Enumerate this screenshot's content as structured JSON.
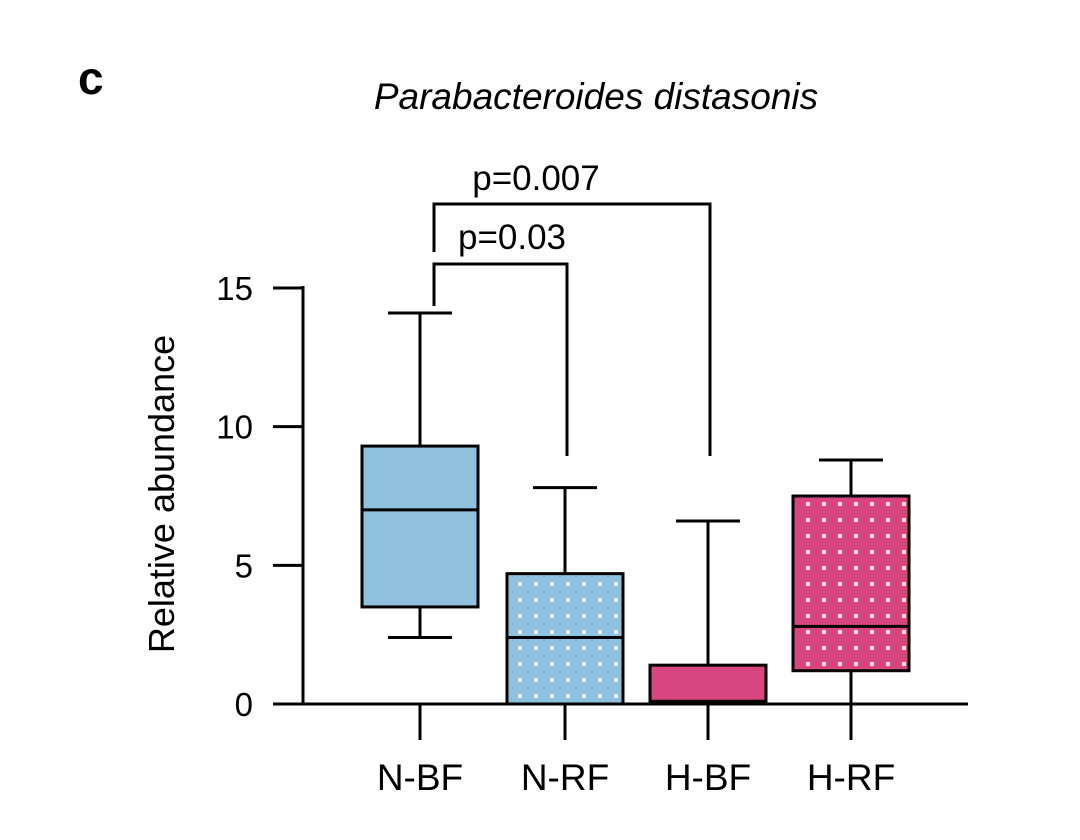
{
  "panel_label": "c",
  "chart_data": {
    "type": "box",
    "title": "Parabacteroides distasonis",
    "xlabel": "",
    "ylabel": "Relative abundance",
    "ylim": [
      0,
      15
    ],
    "yticks": [
      0,
      5,
      10,
      15
    ],
    "ytick_labels": [
      "0",
      "5",
      "10",
      "15"
    ],
    "categories": [
      "N-BF",
      "N-RF",
      "H-BF",
      "H-RF"
    ],
    "boxes": [
      {
        "category": "N-BF",
        "min": 2.4,
        "q1": 3.5,
        "median": 7.0,
        "q3": 9.3,
        "max": 14.1,
        "fill": "#8fc1de",
        "pattern": "none"
      },
      {
        "category": "N-RF",
        "min": 0.0,
        "q1": 0.0,
        "median": 2.4,
        "q3": 4.7,
        "max": 7.8,
        "fill": "#8fc1de",
        "pattern": "dots"
      },
      {
        "category": "H-BF",
        "min": 0.0,
        "q1": 0.0,
        "median": 0.1,
        "q3": 1.4,
        "max": 6.6,
        "fill": "#d9467f",
        "pattern": "none"
      },
      {
        "category": "H-RF",
        "min": 0.0,
        "q1": 1.2,
        "median": 2.8,
        "q3": 7.5,
        "max": 8.8,
        "fill": "#d9467f",
        "pattern": "dots"
      }
    ],
    "significance": [
      {
        "from": "N-BF",
        "to": "N-RF",
        "label": "p=0.03"
      },
      {
        "from": "N-BF",
        "to": "H-BF",
        "label": "p=0.007"
      }
    ],
    "grid": false,
    "legend": "none"
  }
}
